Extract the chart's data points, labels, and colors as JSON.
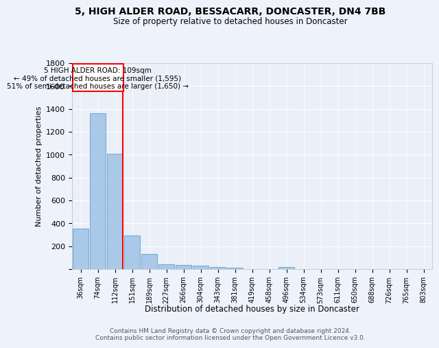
{
  "title": "5, HIGH ALDER ROAD, BESSACARR, DONCASTER, DN4 7BB",
  "subtitle": "Size of property relative to detached houses in Doncaster",
  "xlabel": "Distribution of detached houses by size in Doncaster",
  "ylabel": "Number of detached properties",
  "bar_labels": [
    "36sqm",
    "74sqm",
    "112sqm",
    "151sqm",
    "189sqm",
    "227sqm",
    "266sqm",
    "304sqm",
    "343sqm",
    "381sqm",
    "419sqm",
    "458sqm",
    "496sqm",
    "534sqm",
    "573sqm",
    "611sqm",
    "650sqm",
    "688sqm",
    "726sqm",
    "765sqm",
    "803sqm"
  ],
  "bar_values": [
    355,
    1360,
    1010,
    295,
    130,
    42,
    35,
    30,
    20,
    15,
    0,
    0,
    20,
    0,
    0,
    0,
    0,
    0,
    0,
    0,
    0
  ],
  "bar_color": "#aac8e8",
  "bar_edge_color": "#6aaad4",
  "property_line_x": 2,
  "property_line_label": "5 HIGH ALDER ROAD: 109sqm",
  "annotation_line1": "← 49% of detached houses are smaller (1,595)",
  "annotation_line2": "51% of semi-detached houses are larger (1,650) →",
  "ylim": [
    0,
    1800
  ],
  "yticks": [
    0,
    200,
    400,
    600,
    800,
    1000,
    1200,
    1400,
    1600,
    1800
  ],
  "footer_line1": "Contains HM Land Registry data © Crown copyright and database right 2024.",
  "footer_line2": "Contains public sector information licensed under the Open Government Licence v3.0.",
  "bg_color": "#eef2fb",
  "plot_bg_color": "#eaeff8"
}
